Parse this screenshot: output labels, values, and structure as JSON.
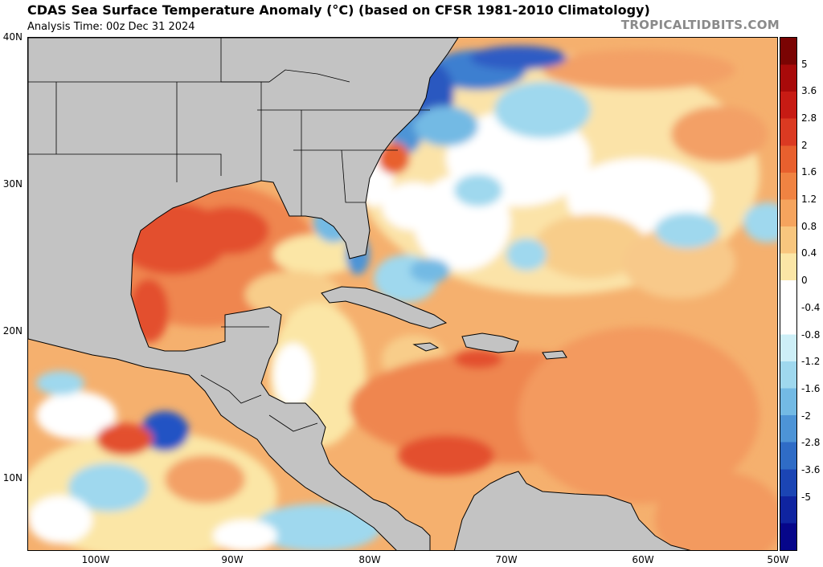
{
  "header": {
    "title": "CDAS Sea Surface Temperature Anomaly (°C) (based on CFSR 1981-2010 Climatology)",
    "analysis_time": "Analysis Time: 00z Dec 31 2024",
    "credit": "TROPICALTIDBITS.COM"
  },
  "axes": {
    "lat_labels": [
      "40N",
      "30N",
      "20N",
      "10N"
    ],
    "lon_labels": [
      "100W",
      "90W",
      "80W",
      "70W",
      "60W",
      "50W"
    ]
  },
  "colorbar": {
    "labels": [
      "5",
      "3.6",
      "2.8",
      "2",
      "1.6",
      "1.2",
      "0.8",
      "0.4",
      "0",
      "-0.4",
      "-0.8",
      "-1.2",
      "-1.6",
      "-2",
      "-2.8",
      "-3.6",
      "-5"
    ],
    "colors": [
      "#7a0403",
      "#a80a0a",
      "#c71b14",
      "#db3a22",
      "#e8602e",
      "#f08342",
      "#f5a45e",
      "#f8c67e",
      "#fbe6a6",
      "#ffffff",
      "#ffffff",
      "#cdeff7",
      "#9fd8ee",
      "#73bae4",
      "#4d94d6",
      "#2f6cc6",
      "#1b45b4",
      "#0f24a0",
      "#06068a"
    ]
  },
  "colors": {
    "land": "#c3c3c3",
    "warm_strong": "#e0442b",
    "warm": "#f0905a",
    "warm_weak": "#f8cd8a",
    "neutral": "#ffffff",
    "cool": "#8ccbec",
    "cold": "#2452c4"
  }
}
